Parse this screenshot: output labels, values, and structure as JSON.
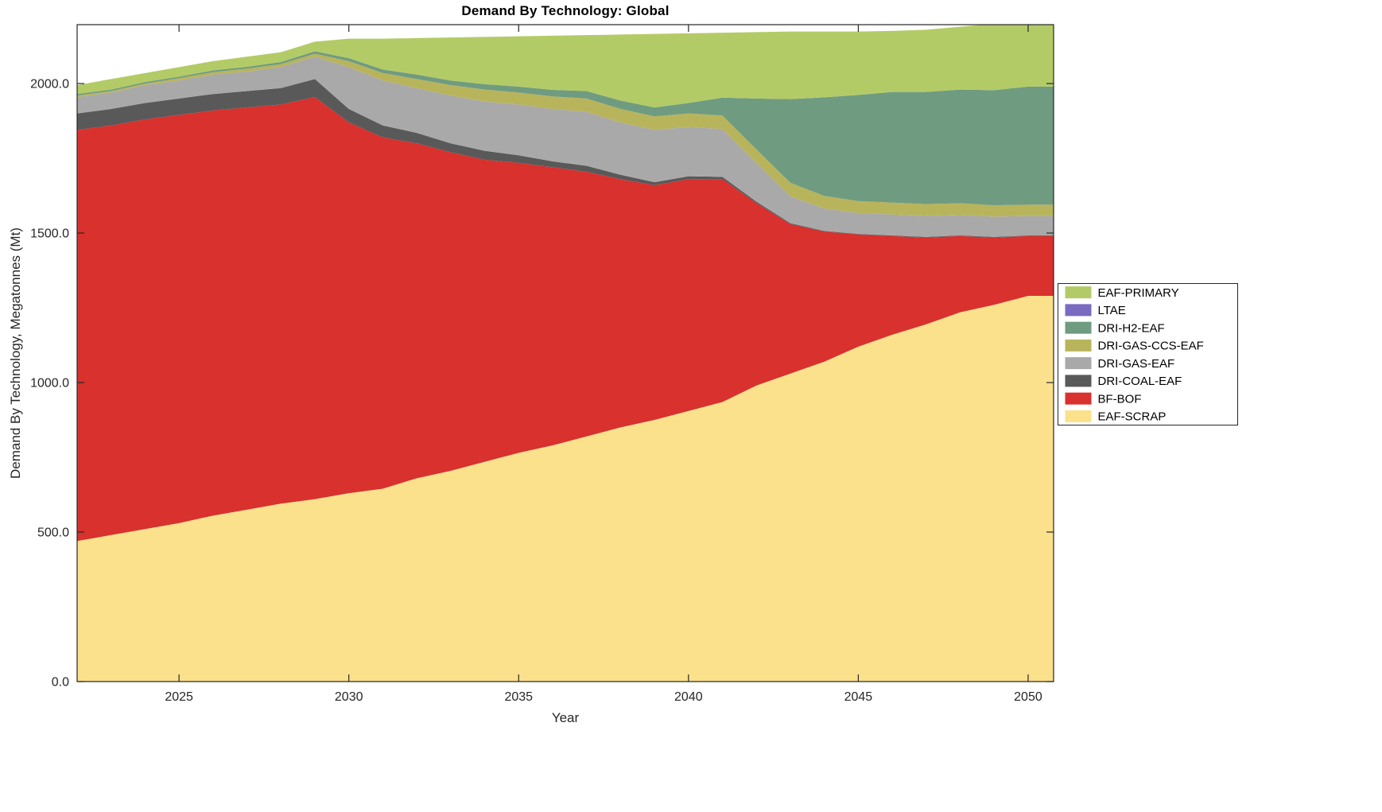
{
  "chart_data": {
    "type": "area",
    "stacked": true,
    "title": "Demand By Technology: Global",
    "xlabel": "Year",
    "ylabel": "Demand By Technology, Megatonnes (Mt)",
    "grid": false,
    "legend_position": "right-outside",
    "xlim": [
      2022,
      2050.75
    ],
    "ylim": [
      0,
      2197
    ],
    "xtick_values": [
      2025,
      2030,
      2035,
      2040,
      2045,
      2050
    ],
    "xtick_labels": [
      "2025",
      "2030",
      "2035",
      "2040",
      "2045",
      "2050"
    ],
    "ytick_values": [
      0,
      500,
      1000,
      1500,
      2000
    ],
    "ytick_labels": [
      "0.0",
      "500.0",
      "1000.0",
      "1500.0",
      "2000.0"
    ],
    "x": [
      2022,
      2023,
      2024,
      2025,
      2026,
      2027,
      2028,
      2029,
      2030,
      2031,
      2032,
      2033,
      2034,
      2035,
      2036,
      2037,
      2038,
      2039,
      2040,
      2041,
      2042,
      2043,
      2044,
      2045,
      2046,
      2047,
      2048,
      2049,
      2050
    ],
    "series": [
      {
        "name": "EAF-SCRAP",
        "color": "#fce18c",
        "values": [
          470,
          490,
          510,
          530,
          555,
          575,
          595,
          610,
          630,
          645,
          680,
          705,
          735,
          765,
          790,
          820,
          850,
          875,
          905,
          935,
          990,
          1030,
          1070,
          1120,
          1160,
          1195,
          1235,
          1260,
          1290
        ]
      },
      {
        "name": "BF-BOF",
        "color": "#d8312e",
        "values": [
          1375,
          1370,
          1370,
          1365,
          1355,
          1345,
          1335,
          1345,
          1240,
          1175,
          1120,
          1065,
          1010,
          970,
          930,
          885,
          830,
          785,
          775,
          745,
          610,
          500,
          435,
          375,
          330,
          290,
          255,
          225,
          200
        ]
      },
      {
        "name": "DRI-COAL-EAF",
        "color": "#595959",
        "values": [
          55,
          55,
          55,
          55,
          55,
          55,
          55,
          60,
          45,
          40,
          35,
          30,
          30,
          25,
          20,
          20,
          15,
          10,
          10,
          8,
          5,
          3,
          2,
          2,
          2,
          2,
          2,
          2,
          2
        ]
      },
      {
        "name": "DRI-GAS-EAF",
        "color": "#a9a9a9",
        "values": [
          55,
          55,
          60,
          60,
          65,
          65,
          70,
          75,
          140,
          150,
          150,
          160,
          165,
          170,
          175,
          180,
          175,
          175,
          165,
          160,
          130,
          90,
          75,
          70,
          70,
          70,
          68,
          68,
          65
        ]
      },
      {
        "name": "DRI-GAS-CCS-EAF",
        "color": "#b8b45c",
        "values": [
          5,
          5,
          5,
          8,
          8,
          10,
          10,
          10,
          20,
          25,
          30,
          35,
          40,
          40,
          42,
          45,
          45,
          45,
          45,
          45,
          45,
          45,
          42,
          40,
          40,
          40,
          40,
          38,
          38
        ]
      },
      {
        "name": "DRI-H2-EAF",
        "color": "#6f9b80",
        "values": [
          5,
          5,
          5,
          5,
          6,
          6,
          7,
          8,
          10,
          12,
          15,
          15,
          18,
          20,
          22,
          25,
          28,
          30,
          35,
          60,
          170,
          280,
          330,
          355,
          370,
          375,
          380,
          385,
          395
        ]
      },
      {
        "name": "LTAE",
        "color": "#7a6bc0",
        "values": [
          0,
          0,
          0,
          0,
          0,
          0,
          0,
          0,
          0,
          0,
          0,
          0,
          0,
          0,
          0,
          0,
          0,
          0,
          0,
          0,
          0,
          0,
          0,
          0,
          0,
          0,
          0,
          0,
          0
        ]
      },
      {
        "name": "EAF-PRIMARY",
        "color": "#b3cb66",
        "values": [
          30,
          35,
          30,
          32,
          31,
          34,
          33,
          32,
          65,
          103,
          122,
          144,
          158,
          168,
          181,
          187,
          221,
          246,
          233,
          217,
          222,
          226,
          220,
          212,
          204,
          208,
          210,
          222,
          222
        ]
      }
    ],
    "legend_order": [
      "EAF-PRIMARY",
      "LTAE",
      "DRI-H2-EAF",
      "DRI-GAS-CCS-EAF",
      "DRI-GAS-EAF",
      "DRI-COAL-EAF",
      "BF-BOF",
      "EAF-SCRAP"
    ]
  },
  "style": {
    "axis_color": "#262626",
    "background": "#ffffff",
    "title_color": "#000000"
  }
}
